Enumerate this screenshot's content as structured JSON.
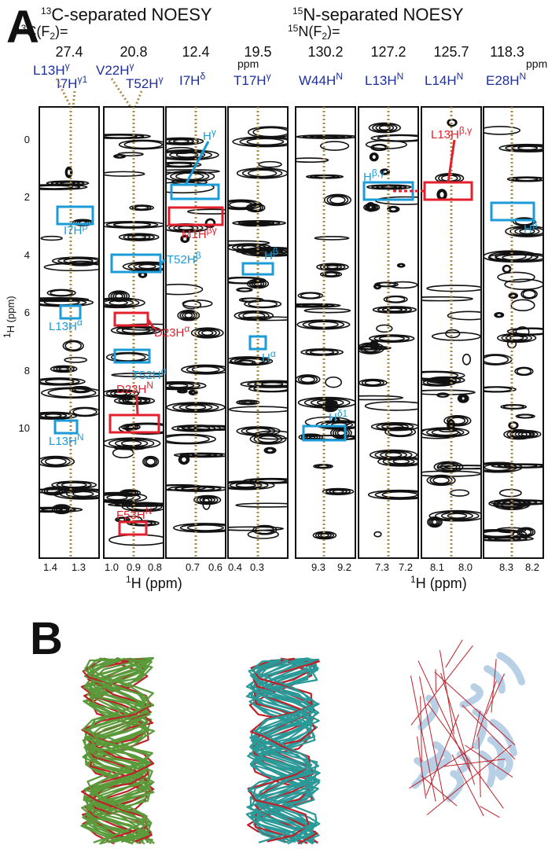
{
  "panel_a": {
    "letter": "A",
    "c13_title": "C-separated NOESY",
    "n15_title": "N-separated NOESY",
    "c13_prefix": "C(F",
    "n15_prefix": "N(F",
    "iso13": "13",
    "iso15": "15",
    "f2_sub": "2",
    "f2_suffix": ")=",
    "ppm_unit": "ppm",
    "y_axis_label": "H (ppm)",
    "y_axis_sup": "1",
    "y_ticks": [
      "0",
      "2",
      "4",
      "6",
      "8",
      "10"
    ],
    "x_axis_label": "H (ppm)",
    "x_axis_sup": "1",
    "strips": [
      {
        "shift": "27.4",
        "x_ticks": [
          "1.4",
          "1.3"
        ]
      },
      {
        "shift": "20.8",
        "x_ticks": [
          "1.0",
          "0.9",
          "0.8"
        ]
      },
      {
        "shift": "12.4",
        "x_ticks": [
          "0.7",
          "0.6"
        ]
      },
      {
        "shift": "19.5",
        "x_ticks": [
          "0.4",
          "0.3"
        ]
      },
      {
        "shift": "130.2",
        "x_ticks": [
          "9.3",
          "9.2"
        ]
      },
      {
        "shift": "127.2",
        "x_ticks": [
          "7.3",
          "7.2"
        ]
      },
      {
        "shift": "125.7",
        "x_ticks": [
          "8.1",
          "8.0"
        ]
      },
      {
        "shift": "118.3",
        "x_ticks": [
          "8.3",
          "8.2"
        ]
      }
    ],
    "atom_labels": [
      {
        "base": "L13H",
        "sup": "γ"
      },
      {
        "base": "I7H",
        "sup": "γ1"
      },
      {
        "base": "V22H",
        "sup": "γ"
      },
      {
        "base": "T52H",
        "sup": "γ"
      },
      {
        "base": "I7H",
        "sup": "δ"
      },
      {
        "base": "T17H",
        "sup": "γ"
      },
      {
        "base": "W44H",
        "sup": "N"
      },
      {
        "base": "L13H",
        "sup": "N"
      },
      {
        "base": "L14H",
        "sup": "N"
      },
      {
        "base": "E28H",
        "sup": "N"
      }
    ],
    "peak_labels": [
      {
        "base": "I7H",
        "sup": "β",
        "color": "blue"
      },
      {
        "base": "L13H",
        "sup": "α",
        "color": "blue"
      },
      {
        "base": "L13H",
        "sup": "N",
        "color": "blue"
      },
      {
        "base": "T52H",
        "sup": "β",
        "color": "blue"
      },
      {
        "base": "D23H",
        "sup": "α",
        "color": "red"
      },
      {
        "base": "T52H",
        "sup": "α",
        "color": "blue"
      },
      {
        "base": "D23H",
        "sup": "N",
        "color": "red"
      },
      {
        "base": "F53H",
        "sup": "N",
        "color": "red"
      },
      {
        "base": "H",
        "sup": "γ",
        "color": "blue"
      },
      {
        "base": "M1H",
        "sup": "βγ",
        "color": "red"
      },
      {
        "base": "H",
        "sup": "β",
        "color": "blue"
      },
      {
        "base": "H",
        "sup": "α",
        "color": "blue"
      },
      {
        "base": "H",
        "sup": "δ1",
        "color": "blue"
      },
      {
        "base": "H",
        "sup": "β,γ",
        "color": "blue"
      },
      {
        "base": "L13H",
        "sup": "β,γ",
        "color": "red"
      },
      {
        "base": "H",
        "sup": "β",
        "color": "blue"
      }
    ]
  },
  "panel_b": {
    "letter": "B"
  },
  "colors": {
    "label_blue": "#1b9bd8",
    "label_red": "#e3202e",
    "atom_navy": "#1f2f9a",
    "guide_gold": "#a98a4a",
    "ensemble_green": "#5a9a3a",
    "ensemble_teal": "#2a9a98",
    "cartoon_lightblue": "#b8d0e6",
    "restraint_red": "#c0202a"
  }
}
